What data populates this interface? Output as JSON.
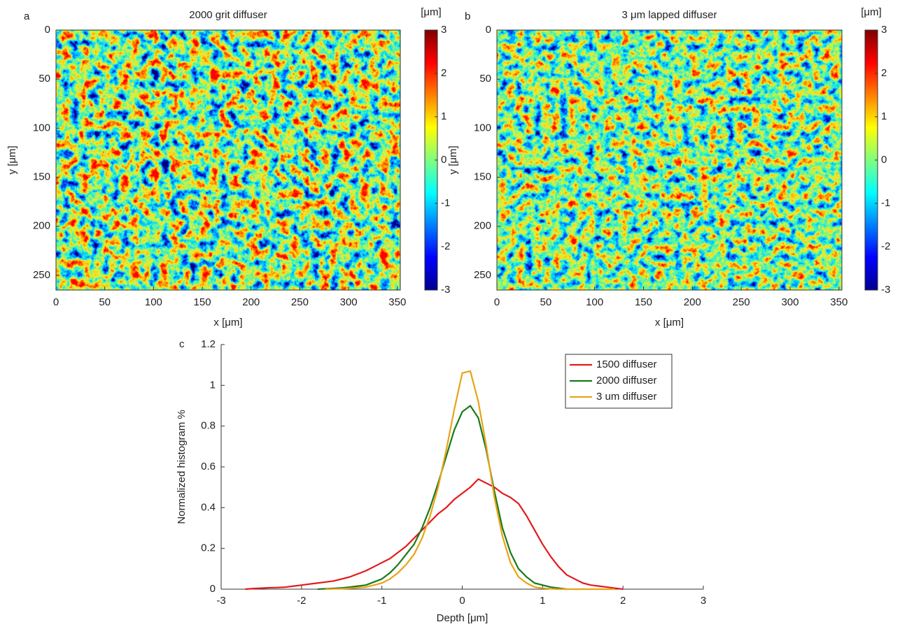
{
  "chart_data": [
    {
      "type": "heatmap",
      "panel_label": "a",
      "title": "2000 grit diffuser",
      "xlabel": "x [μm]",
      "ylabel": "y [μm]",
      "xlim": [
        0,
        353
      ],
      "ylim": [
        0,
        265
      ],
      "y_reversed": true,
      "xticks": [
        0,
        50,
        100,
        150,
        200,
        250,
        300,
        350
      ],
      "yticks": [
        0,
        50,
        100,
        150,
        200,
        250
      ],
      "colorbar_label": "[μm]",
      "clim": [
        -3,
        3
      ],
      "cticks": [
        -3,
        -2,
        -1,
        0,
        1,
        2,
        3
      ],
      "colormap": "jet"
    },
    {
      "type": "heatmap",
      "panel_label": "b",
      "title": "3 μm lapped diffuser",
      "xlabel": "x [μm]",
      "ylabel": "y [μm]",
      "xlim": [
        0,
        353
      ],
      "ylim": [
        0,
        265
      ],
      "y_reversed": true,
      "xticks": [
        0,
        50,
        100,
        150,
        200,
        250,
        300,
        350
      ],
      "yticks": [
        0,
        50,
        100,
        150,
        200,
        250
      ],
      "colorbar_label": "[μm]",
      "clim": [
        -3,
        3
      ],
      "cticks": [
        -3,
        -2,
        -1,
        0,
        1,
        2,
        3
      ],
      "colormap": "jet"
    },
    {
      "type": "line",
      "panel_label": "c",
      "xlabel": "Depth [μm]",
      "ylabel": "Normalized histogram %",
      "xlim": [
        -3,
        3
      ],
      "ylim": [
        0,
        1.2
      ],
      "xticks": [
        -3,
        -2,
        -1,
        0,
        1,
        2,
        3
      ],
      "yticks": [
        0,
        0.2,
        0.4,
        0.6,
        0.8,
        1,
        1.2
      ],
      "legend": "upper right",
      "x": [
        -2.7,
        -2.6,
        -2.5,
        -2.4,
        -2.3,
        -2.2,
        -2.1,
        -2.0,
        -1.9,
        -1.8,
        -1.7,
        -1.6,
        -1.5,
        -1.4,
        -1.3,
        -1.2,
        -1.1,
        -1.0,
        -0.9,
        -0.8,
        -0.7,
        -0.6,
        -0.5,
        -0.4,
        -0.3,
        -0.2,
        -0.1,
        0,
        0.1,
        0.2,
        0.3,
        0.4,
        0.5,
        0.6,
        0.7,
        0.8,
        0.9,
        1.0,
        1.1,
        1.2,
        1.3,
        1.4,
        1.5,
        1.6,
        1.7,
        1.8,
        1.9,
        2.0
      ],
      "series": [
        {
          "name": "1500 diffuser",
          "color": "#e31a1c",
          "values": [
            0,
            0.003,
            0.005,
            0.007,
            0.008,
            0.01,
            0.015,
            0.02,
            0.025,
            0.03,
            0.035,
            0.04,
            0.05,
            0.06,
            0.075,
            0.09,
            0.11,
            0.13,
            0.15,
            0.18,
            0.21,
            0.25,
            0.29,
            0.33,
            0.37,
            0.4,
            0.44,
            0.47,
            0.5,
            0.54,
            0.52,
            0.5,
            0.47,
            0.45,
            0.42,
            0.36,
            0.29,
            0.22,
            0.16,
            0.11,
            0.07,
            0.05,
            0.03,
            0.02,
            0.015,
            0.01,
            0.005,
            0
          ]
        },
        {
          "name": "2000 diffuser",
          "color": "#1a7a1a",
          "values": [
            null,
            null,
            null,
            null,
            null,
            null,
            null,
            null,
            null,
            0,
            0.002,
            0.004,
            0.006,
            0.01,
            0.015,
            0.02,
            0.035,
            0.05,
            0.08,
            0.12,
            0.17,
            0.22,
            0.3,
            0.4,
            0.52,
            0.65,
            0.78,
            0.87,
            0.9,
            0.84,
            0.68,
            0.48,
            0.3,
            0.18,
            0.1,
            0.06,
            0.03,
            0.02,
            0.01,
            0.005,
            0,
            null,
            null,
            null,
            null,
            null,
            null,
            null
          ]
        },
        {
          "name": "3 um diffuser",
          "color": "#e8a317",
          "values": [
            null,
            null,
            null,
            null,
            null,
            null,
            null,
            null,
            null,
            null,
            0,
            0.001,
            0.002,
            0.004,
            0.007,
            0.01,
            0.02,
            0.03,
            0.05,
            0.08,
            0.12,
            0.17,
            0.25,
            0.36,
            0.5,
            0.68,
            0.88,
            1.06,
            1.07,
            0.92,
            0.7,
            0.45,
            0.26,
            0.13,
            0.06,
            0.03,
            0.01,
            0.005,
            0.002,
            0,
            0,
            0,
            0,
            0,
            0,
            0,
            0,
            null
          ]
        }
      ]
    }
  ]
}
